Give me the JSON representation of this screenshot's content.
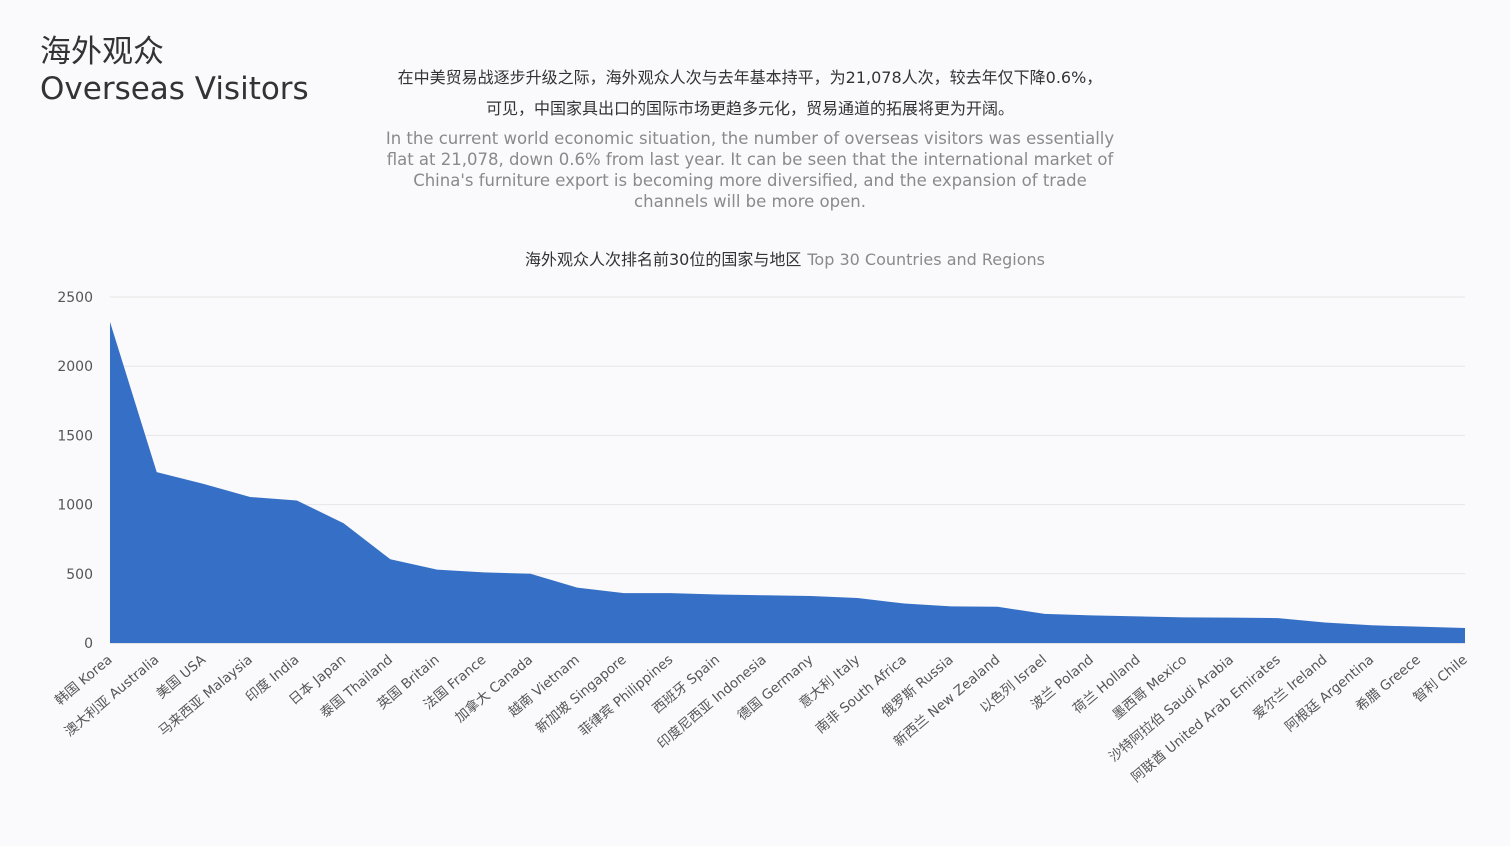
{
  "header": {
    "title_cn": "海外观众",
    "title_en": "Overseas Visitors"
  },
  "summary": {
    "cn_line1": "在中美贸易战逐步升级之际，海外观众人次与去年基本持平，为21,078人次，较去年仅下降0.6%，",
    "cn_line2": "可见，中国家具出口的国际市场更趋多元化，贸易通道的拓展将更为开阔。",
    "en_text": "In the current world economic situation, the number of overseas visitors was essentially flat at 21,078, down 0.6% from last year. It can be seen that the international market of China's furniture export is becoming more diversified, and the expansion of trade channels will be more open."
  },
  "colors": {
    "area_fill": "#3670c6",
    "gridline": "#e6e6e6",
    "axis": "#cccccc"
  },
  "chart_data": {
    "type": "area",
    "title_cn": "海外观众人次排名前30位的国家与地区",
    "title_en": "Top 30 Countries and Regions",
    "xlabel": "",
    "ylabel": "",
    "ylim": [
      0,
      2500
    ],
    "yticks": [
      0,
      500,
      1000,
      1500,
      2000,
      2500
    ],
    "grid": true,
    "categories": [
      "韩国 Korea",
      "澳大利亚 Australia",
      "美国 USA",
      "马来西亚 Malaysia",
      "印度 India",
      "日本 Japan",
      "泰国 Thailand",
      "英国 Britain",
      "法国 France",
      "加拿大 Canada",
      "越南 Vietnam",
      "新加坡 Singapore",
      "菲律宾 Philippines",
      "西班牙 Spain",
      "印度尼西亚 Indonesia",
      "德国 Germany",
      "意大利 Italy",
      "南非 South Africa",
      "俄罗斯 Russia",
      "新西兰 New Zealand",
      "以色列 Israel",
      "波兰 Poland",
      "荷兰 Holland",
      "墨西哥 Mexico",
      "沙特阿拉伯 Saudi Arabia",
      "阿联酋 United Arab Emirates",
      "爱尔兰 Ireland",
      "阿根廷 Argentina",
      "希腊 Greece",
      "智利 Chile"
    ],
    "series": [
      {
        "values": [
          2320,
          1235,
          1150,
          1055,
          1030,
          865,
          605,
          530,
          510,
          500,
          400,
          360,
          360,
          350,
          345,
          340,
          325,
          285,
          265,
          262,
          210,
          200,
          192,
          185,
          183,
          180,
          148,
          128,
          118,
          108
        ]
      }
    ]
  }
}
